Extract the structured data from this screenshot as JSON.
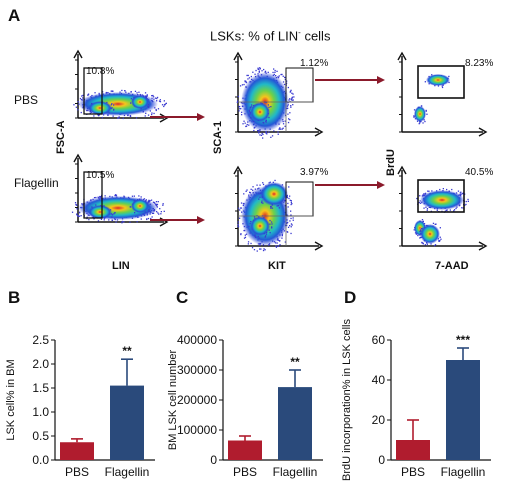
{
  "panel_letters": {
    "a": "A",
    "b": "B",
    "c": "C",
    "d": "D"
  },
  "panel_a": {
    "title": "LSKs: % of LIN",
    "title_sup": "-",
    "title_tail": " cells",
    "row_labels": [
      "PBS",
      "Flagellin"
    ],
    "col1": {
      "xlabel": "LIN",
      "ylabel": "FSC-A",
      "gates": [
        "10.8%",
        "10.5%"
      ]
    },
    "col2": {
      "xlabel": "KIT",
      "ylabel": "SCA-1",
      "gates": [
        "1.12%",
        "3.97%"
      ]
    },
    "col3": {
      "xlabel": "7-AAD",
      "ylabel": "BrdU",
      "gates": [
        "8.23%",
        "40.5%"
      ]
    }
  },
  "chart_data": [
    {
      "type": "bar",
      "panel": "B",
      "categories": [
        "PBS",
        "Flagellin"
      ],
      "values": [
        0.37,
        1.55
      ],
      "errors": [
        0.07,
        0.55
      ],
      "colors": [
        "#b01c2e",
        "#2a4a7b"
      ],
      "ylabel": "LSK cell% in BM",
      "ylim": [
        0,
        2.5
      ],
      "yticks": [
        "0.0",
        "0.5",
        "1.0",
        "1.5",
        "2.0",
        "2.5"
      ],
      "significance": "**"
    },
    {
      "type": "bar",
      "panel": "C",
      "categories": [
        "PBS",
        "Flagellin"
      ],
      "values": [
        65000,
        243000
      ],
      "errors": [
        15000,
        57000
      ],
      "colors": [
        "#b01c2e",
        "#2a4a7b"
      ],
      "ylabel": "BM LSK cell number",
      "ylim": [
        0,
        400000
      ],
      "yticks": [
        "0",
        "100000",
        "200000",
        "300000",
        "400000"
      ],
      "significance": "**"
    },
    {
      "type": "bar",
      "panel": "D",
      "categories": [
        "PBS",
        "Flagellin"
      ],
      "values": [
        10,
        50
      ],
      "errors": [
        10,
        6
      ],
      "colors": [
        "#b01c2e",
        "#2a4a7b"
      ],
      "ylabel": "BrdU incorporation% in LSK cells",
      "ylabel_sup": "+",
      "ylim": [
        0,
        60
      ],
      "yticks": [
        "0",
        "20",
        "40",
        "60"
      ],
      "significance": "***"
    }
  ],
  "colors": {
    "arrow": "#8b1a2b",
    "pbs": "#b01c2e",
    "flagellin": "#2a4a7b"
  }
}
